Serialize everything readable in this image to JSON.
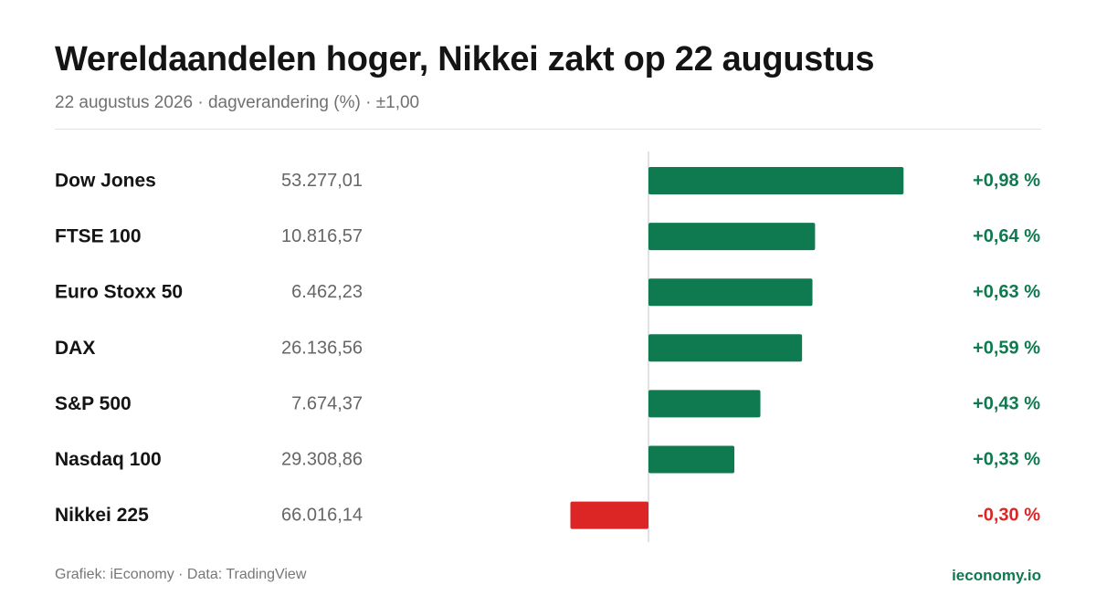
{
  "header": {
    "title": "Wereldaandelen hoger, Nikkei zakt op 22 augustus",
    "subtitle": "22 augustus 2026 · dagverandering (%) · ±1,00"
  },
  "footer": {
    "source": "Grafiek: iEconomy · Data: TradingView",
    "brand": "ieconomy.io"
  },
  "colors": {
    "positive": "#0f7a4f",
    "negative": "#dc2626",
    "axis": "#d8d8d8",
    "name_text": "#141414",
    "value_text": "#666666"
  },
  "chart_data": {
    "type": "bar",
    "orientation": "horizontal",
    "categories": [
      "Dow Jones",
      "FTSE 100",
      "Euro Stoxx 50",
      "DAX",
      "S&P 500",
      "Nasdaq 100",
      "Nikkei 225"
    ],
    "index_levels": [
      "53.277,01",
      "10.816,57",
      "6.462,23",
      "26.136,56",
      "7.674,37",
      "29.308,86",
      "66.016,14"
    ],
    "values": [
      0.98,
      0.64,
      0.63,
      0.59,
      0.43,
      0.33,
      -0.3
    ],
    "value_labels": [
      "+0,98 %",
      "+0,64 %",
      "+0,63 %",
      "+0,59 %",
      "+0,43 %",
      "+0,33 %",
      "-0,30 %"
    ],
    "xlim": [
      -1.0,
      1.0
    ]
  }
}
